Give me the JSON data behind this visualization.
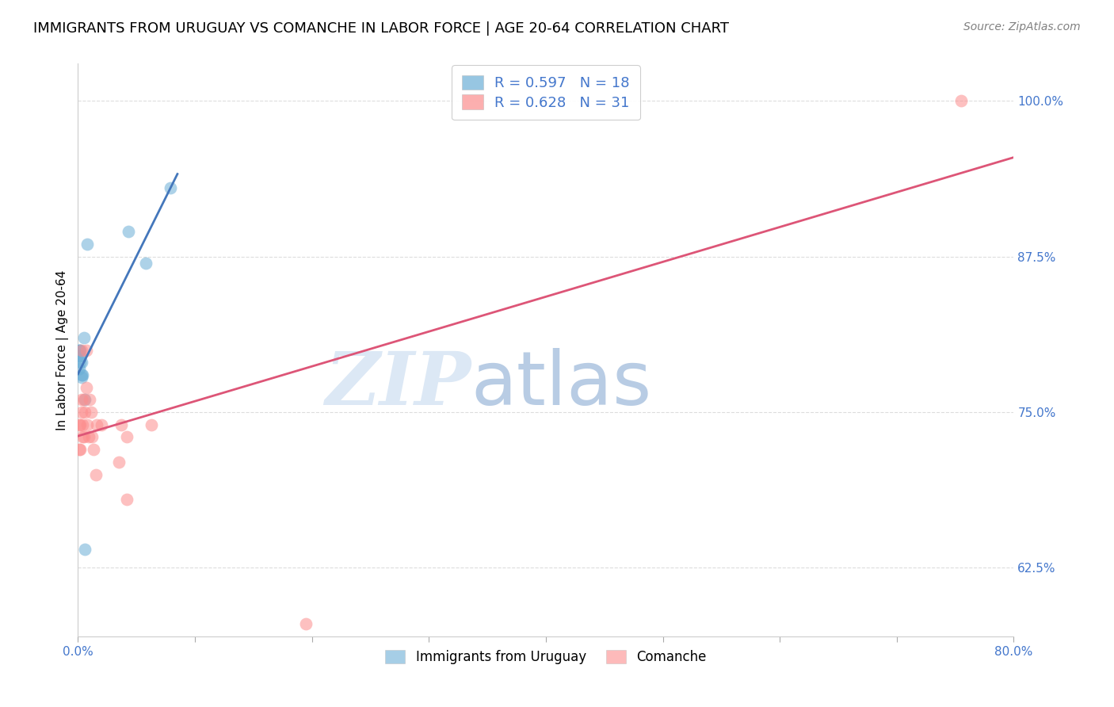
{
  "title": "IMMIGRANTS FROM URUGUAY VS COMANCHE IN LABOR FORCE | AGE 20-64 CORRELATION CHART",
  "source": "Source: ZipAtlas.com",
  "xlabel": "",
  "ylabel": "In Labor Force | Age 20-64",
  "xlim": [
    0.0,
    0.8
  ],
  "ylim": [
    0.57,
    1.03
  ],
  "yticks": [
    0.625,
    0.75,
    0.875,
    1.0
  ],
  "ytick_labels": [
    "62.5%",
    "75.0%",
    "87.5%",
    "100.0%"
  ],
  "xticks": [
    0.0,
    0.1,
    0.2,
    0.3,
    0.4,
    0.5,
    0.6,
    0.7,
    0.8
  ],
  "xtick_labels": [
    "0.0%",
    "",
    "",
    "",
    "",
    "",
    "",
    "",
    "80.0%"
  ],
  "uruguay_x": [
    0.001,
    0.001,
    0.001,
    0.001,
    0.002,
    0.002,
    0.002,
    0.003,
    0.003,
    0.003,
    0.004,
    0.005,
    0.006,
    0.006,
    0.008,
    0.043,
    0.058,
    0.079
  ],
  "uruguay_y": [
    0.8,
    0.795,
    0.785,
    0.8,
    0.8,
    0.795,
    0.79,
    0.79,
    0.78,
    0.778,
    0.78,
    0.81,
    0.76,
    0.64,
    0.885,
    0.895,
    0.87,
    0.93
  ],
  "comanche_x": [
    0.001,
    0.001,
    0.002,
    0.002,
    0.003,
    0.003,
    0.003,
    0.004,
    0.004,
    0.005,
    0.005,
    0.006,
    0.007,
    0.007,
    0.008,
    0.009,
    0.01,
    0.011,
    0.012,
    0.013,
    0.015,
    0.016,
    0.02,
    0.035,
    0.037,
    0.042,
    0.042,
    0.063,
    0.195,
    0.755
  ],
  "comanche_y": [
    0.74,
    0.72,
    0.74,
    0.72,
    0.76,
    0.75,
    0.8,
    0.73,
    0.74,
    0.73,
    0.76,
    0.75,
    0.77,
    0.8,
    0.74,
    0.73,
    0.76,
    0.75,
    0.73,
    0.72,
    0.7,
    0.74,
    0.74,
    0.71,
    0.74,
    0.73,
    0.68,
    0.74,
    0.58,
    1.0
  ],
  "comanche_extra_x": [
    0.001
  ],
  "comanche_extra_y": [
    0.64
  ],
  "uruguay_color": "#6baed6",
  "comanche_color": "#fc8d8d",
  "uruguay_R": 0.597,
  "uruguay_N": 18,
  "comanche_R": 0.628,
  "comanche_N": 31,
  "trend_color_uruguay": "#4477bb",
  "trend_color_comanche": "#dd5577",
  "legend_label_uruguay": "Immigrants from Uruguay",
  "legend_label_comanche": "Comanche",
  "annotation_color": "#c8d8f0",
  "watermark_zip": "ZIP",
  "watermark_atlas": "atlas",
  "grid_color": "#dddddd",
  "title_fontsize": 13,
  "axis_label_color": "#4477cc",
  "r_n_color": "#4477cc",
  "uruguay_line_start_x": 0.0,
  "uruguay_line_end_x": 0.085,
  "comanche_line_start_x": 0.0,
  "comanche_line_end_x": 0.8
}
